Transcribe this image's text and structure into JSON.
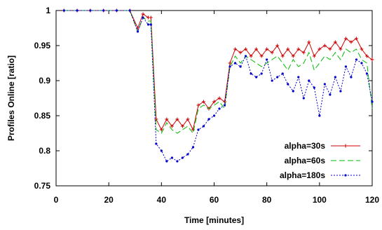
{
  "chart_data": {
    "type": "line",
    "title": "",
    "xlabel": "Time [minutes]",
    "ylabel": "Profiles Online [ratio]",
    "xlim": [
      0,
      120
    ],
    "ylim": [
      0.75,
      1
    ],
    "xticks": [
      0,
      20,
      40,
      60,
      80,
      100,
      120
    ],
    "yticks": [
      0.75,
      0.8,
      0.85,
      0.9,
      0.95,
      1
    ],
    "grid": false,
    "legend_position": "bottom-right",
    "series": [
      {
        "name": "alpha=30s",
        "color": "#cc0000",
        "dash": "solid",
        "marker": "plus",
        "x": [
          3,
          8,
          13,
          18,
          23,
          28,
          31,
          33,
          35,
          36,
          38,
          40,
          42,
          44,
          46,
          48,
          50,
          52,
          54,
          56,
          58,
          60,
          62,
          64,
          66,
          68,
          70,
          72,
          74,
          76,
          78,
          80,
          82,
          84,
          86,
          88,
          90,
          92,
          94,
          96,
          98,
          100,
          102,
          104,
          106,
          108,
          110,
          112,
          114,
          116,
          118,
          120
        ],
        "y": [
          1,
          1,
          1,
          1,
          1,
          1,
          0.975,
          0.995,
          0.99,
          0.99,
          0.845,
          0.83,
          0.845,
          0.835,
          0.845,
          0.835,
          0.845,
          0.83,
          0.865,
          0.87,
          0.86,
          0.87,
          0.875,
          0.87,
          0.925,
          0.945,
          0.94,
          0.945,
          0.935,
          0.945,
          0.935,
          0.945,
          0.94,
          0.95,
          0.935,
          0.945,
          0.935,
          0.945,
          0.94,
          0.955,
          0.935,
          0.945,
          0.95,
          0.945,
          0.955,
          0.945,
          0.96,
          0.955,
          0.96,
          0.945,
          0.935,
          0.93
        ]
      },
      {
        "name": "alpha=60s",
        "color": "#00bb00",
        "dash": "8,4",
        "marker": "none",
        "x": [
          3,
          8,
          13,
          18,
          23,
          28,
          31,
          33,
          35,
          36,
          38,
          40,
          42,
          44,
          46,
          48,
          50,
          52,
          54,
          56,
          58,
          60,
          62,
          64,
          66,
          68,
          70,
          72,
          74,
          76,
          78,
          80,
          82,
          84,
          86,
          88,
          90,
          92,
          94,
          96,
          98,
          100,
          102,
          104,
          106,
          108,
          110,
          112,
          114,
          116,
          118,
          120
        ],
        "y": [
          1,
          1,
          1,
          1,
          1,
          1,
          0.97,
          0.99,
          0.985,
          0.985,
          0.83,
          0.825,
          0.84,
          0.83,
          0.825,
          0.83,
          0.835,
          0.825,
          0.86,
          0.865,
          0.86,
          0.865,
          0.87,
          0.86,
          0.92,
          0.935,
          0.925,
          0.935,
          0.93,
          0.925,
          0.92,
          0.925,
          0.93,
          0.935,
          0.925,
          0.915,
          0.93,
          0.92,
          0.925,
          0.94,
          0.915,
          0.925,
          0.935,
          0.93,
          0.94,
          0.93,
          0.945,
          0.94,
          0.945,
          0.93,
          0.925,
          0.86
        ]
      },
      {
        "name": "alpha=180s",
        "color": "#0000cc",
        "dash": "2,2",
        "marker": "dot",
        "x": [
          3,
          8,
          13,
          18,
          23,
          28,
          31,
          33,
          35,
          36,
          38,
          40,
          42,
          44,
          46,
          48,
          50,
          52,
          54,
          56,
          58,
          60,
          62,
          64,
          66,
          68,
          70,
          72,
          74,
          76,
          78,
          80,
          82,
          84,
          86,
          88,
          90,
          92,
          94,
          96,
          98,
          100,
          102,
          104,
          106,
          108,
          110,
          112,
          114,
          116,
          118,
          120
        ],
        "y": [
          1,
          1,
          1,
          1,
          1,
          1,
          0.97,
          0.99,
          0.98,
          0.98,
          0.81,
          0.8,
          0.785,
          0.79,
          0.785,
          0.79,
          0.795,
          0.805,
          0.83,
          0.835,
          0.845,
          0.85,
          0.86,
          0.865,
          0.92,
          0.925,
          0.92,
          0.935,
          0.91,
          0.905,
          0.91,
          0.93,
          0.9,
          0.905,
          0.91,
          0.895,
          0.885,
          0.905,
          0.875,
          0.9,
          0.89,
          0.85,
          0.895,
          0.88,
          0.905,
          0.885,
          0.92,
          0.905,
          0.93,
          0.925,
          0.91,
          0.87
        ]
      }
    ]
  }
}
